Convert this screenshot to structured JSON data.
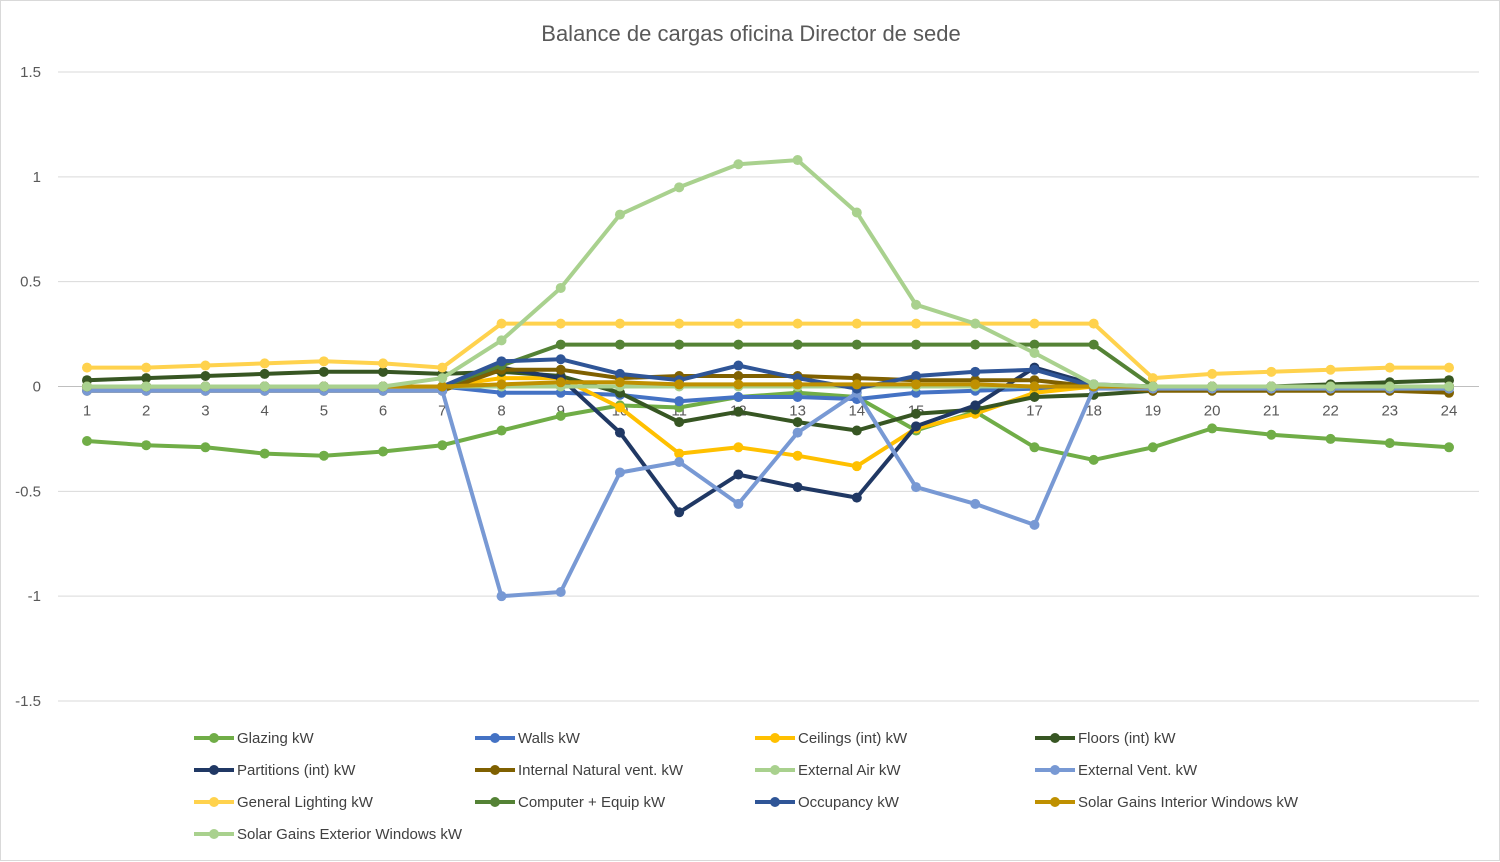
{
  "chart_data": {
    "type": "line",
    "title": "Balance de cargas oficina Director de sede",
    "xlabel": "",
    "ylabel": "",
    "categories": [
      "1",
      "2",
      "3",
      "4",
      "5",
      "6",
      "7",
      "8",
      "9",
      "10",
      "11",
      "12",
      "13",
      "14",
      "15",
      "16",
      "17",
      "18",
      "19",
      "20",
      "21",
      "22",
      "23",
      "24"
    ],
    "y_ticks": [
      "1.5",
      "1",
      "0.5",
      "0",
      "-0.5",
      "-1",
      "-1.5"
    ],
    "ylim": [
      -1.5,
      1.5
    ],
    "grid": true,
    "legend_position": "bottom",
    "series": [
      {
        "name": "Glazing kW",
        "color": "#70ad47",
        "values": [
          -0.26,
          -0.28,
          -0.29,
          -0.32,
          -0.33,
          -0.31,
          -0.28,
          -0.21,
          -0.14,
          -0.09,
          -0.1,
          -0.05,
          -0.03,
          -0.05,
          -0.21,
          -0.12,
          -0.29,
          -0.35,
          -0.29,
          -0.2,
          -0.23,
          -0.25,
          -0.27,
          -0.29
        ]
      },
      {
        "name": "Walls kW",
        "color": "#4472c4",
        "values": [
          0,
          0,
          0,
          0,
          0,
          0,
          0,
          -0.03,
          -0.03,
          -0.04,
          -0.07,
          -0.05,
          -0.05,
          -0.06,
          -0.03,
          -0.02,
          -0.01,
          0,
          0,
          0,
          0,
          0,
          0,
          0
        ]
      },
      {
        "name": "Ceilings (int) kW",
        "color": "#ffc000",
        "values": [
          0,
          0,
          0,
          0,
          0,
          0,
          0,
          0.04,
          0.04,
          -0.1,
          -0.32,
          -0.29,
          -0.33,
          -0.38,
          -0.2,
          -0.13,
          -0.03,
          0,
          0,
          0,
          0,
          0,
          0,
          0
        ]
      },
      {
        "name": "Floors (int) kW",
        "color": "#375623",
        "values": [
          0.03,
          0.04,
          0.05,
          0.06,
          0.07,
          0.07,
          0.06,
          0.07,
          0.05,
          -0.03,
          -0.17,
          -0.12,
          -0.17,
          -0.21,
          -0.13,
          -0.11,
          -0.05,
          -0.04,
          -0.02,
          -0.01,
          0,
          0.01,
          0.02,
          0.03
        ]
      },
      {
        "name": "Partitions (int) kW",
        "color": "#203864",
        "values": [
          0,
          0,
          0,
          0,
          0,
          0,
          0,
          0.09,
          0.04,
          -0.22,
          -0.6,
          -0.42,
          -0.48,
          -0.53,
          -0.19,
          -0.09,
          0.09,
          0.01,
          0,
          0,
          0,
          0,
          0,
          0
        ]
      },
      {
        "name": "Internal Natural vent. kW",
        "color": "#7f6000",
        "values": [
          -0.02,
          -0.02,
          -0.02,
          -0.02,
          -0.02,
          -0.02,
          -0.02,
          0.08,
          0.08,
          0.04,
          0.05,
          0.05,
          0.05,
          0.04,
          0.03,
          0.03,
          0.03,
          0,
          -0.02,
          -0.02,
          -0.02,
          -0.02,
          -0.02,
          -0.03
        ]
      },
      {
        "name": "External Air kW",
        "color": "#a9d18e",
        "values": [
          0,
          0,
          0,
          0,
          0,
          0,
          0,
          0,
          0,
          0,
          0,
          0,
          0,
          0,
          0,
          0,
          0,
          0,
          0,
          0,
          0,
          0,
          0,
          0
        ]
      },
      {
        "name": "External Vent. kW",
        "color": "#7899d4",
        "values": [
          -0.02,
          -0.02,
          -0.02,
          -0.02,
          -0.02,
          -0.02,
          -0.02,
          -1.0,
          -0.98,
          -0.41,
          -0.36,
          -0.56,
          -0.22,
          -0.03,
          -0.48,
          -0.56,
          -0.66,
          -0.01,
          -0.01,
          -0.01,
          -0.01,
          -0.01,
          -0.01,
          -0.01
        ]
      },
      {
        "name": "General Lighting kW",
        "color": "#ffd24d",
        "values": [
          0.09,
          0.09,
          0.1,
          0.11,
          0.12,
          0.11,
          0.09,
          0.3,
          0.3,
          0.3,
          0.3,
          0.3,
          0.3,
          0.3,
          0.3,
          0.3,
          0.3,
          0.3,
          0.04,
          0.06,
          0.07,
          0.08,
          0.09,
          0.09
        ]
      },
      {
        "name": "Computer + Equip kW",
        "color": "#548235",
        "values": [
          0,
          0,
          0,
          0,
          0,
          0,
          0,
          0.1,
          0.2,
          0.2,
          0.2,
          0.2,
          0.2,
          0.2,
          0.2,
          0.2,
          0.2,
          0.2,
          0,
          0,
          0,
          0,
          0,
          0
        ]
      },
      {
        "name": "Occupancy kW",
        "color": "#2f5597",
        "values": [
          0,
          0,
          0,
          0,
          0,
          0,
          0,
          0.12,
          0.13,
          0.06,
          0.03,
          0.1,
          0.04,
          -0.01,
          0.05,
          0.07,
          0.08,
          0,
          0,
          0,
          0,
          0,
          0,
          0
        ]
      },
      {
        "name": "Solar Gains Interior Windows kW",
        "color": "#bf9000",
        "values": [
          0,
          0,
          0,
          0,
          0,
          0,
          0,
          0.01,
          0.02,
          0.02,
          0.01,
          0.01,
          0.01,
          0.01,
          0.01,
          0.01,
          0,
          0,
          0,
          0,
          0,
          0,
          0,
          0
        ]
      },
      {
        "name": "Solar Gains Exterior Windows kW",
        "color": "#a9d18e",
        "values": [
          0,
          0,
          0,
          0,
          0,
          0,
          0.04,
          0.22,
          0.47,
          0.82,
          0.95,
          1.06,
          1.08,
          0.83,
          0.39,
          0.3,
          0.16,
          0.01,
          0,
          0,
          0,
          0,
          0,
          0
        ]
      }
    ]
  }
}
